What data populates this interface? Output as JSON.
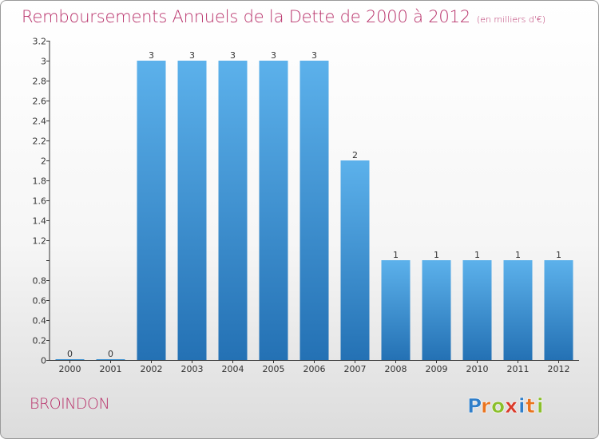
{
  "title": "Remboursements Annuels de la Dette de 2000 à 2012",
  "subtitle": "(en milliers d'€)",
  "commune": "BROINDON",
  "logo": {
    "letters": [
      "P",
      "r",
      "o",
      "x",
      "i",
      "t",
      "i"
    ],
    "colors": [
      "#2f7ec9",
      "#e9731e",
      "#8bbf2b",
      "#d93a2a",
      "#2f7ec9",
      "#e9731e",
      "#8bbf2b"
    ]
  },
  "colors": {
    "bar_top": "#5cb1eb",
    "bar_bottom": "#2471b4",
    "title": "#b8316a"
  },
  "chart_data": {
    "type": "bar",
    "title": "Remboursements Annuels de la Dette de 2000 à 2012",
    "subtitle": "(en milliers d'€)",
    "xlabel": "",
    "ylabel": "",
    "categories": [
      "2000",
      "2001",
      "2002",
      "2003",
      "2004",
      "2005",
      "2006",
      "2007",
      "2008",
      "2009",
      "2010",
      "2011",
      "2012"
    ],
    "values": [
      0,
      0,
      3,
      3,
      3,
      3,
      3,
      2,
      1,
      1,
      1,
      1,
      1
    ],
    "data_labels": [
      "0",
      "0",
      "3",
      "3",
      "3",
      "3",
      "3",
      "2",
      "1",
      "1",
      "1",
      "1",
      "1"
    ],
    "ylim": [
      0,
      3.2
    ],
    "yticks": [
      0,
      0.2,
      0.4,
      0.6,
      0.8,
      1,
      1.2,
      1.4,
      1.6,
      1.8,
      2,
      2.2,
      2.4,
      2.6,
      2.8,
      3,
      3.2
    ],
    "ytick_labels": [
      "0",
      "0.2",
      "0.4",
      "0.6",
      "0.8",
      "",
      "1.2",
      "1.4",
      "1.6",
      "1.8",
      "2",
      "2.2",
      "2.4",
      "2.6",
      "2.8",
      "3",
      "3.2"
    ],
    "grid": false,
    "legend": "none"
  }
}
